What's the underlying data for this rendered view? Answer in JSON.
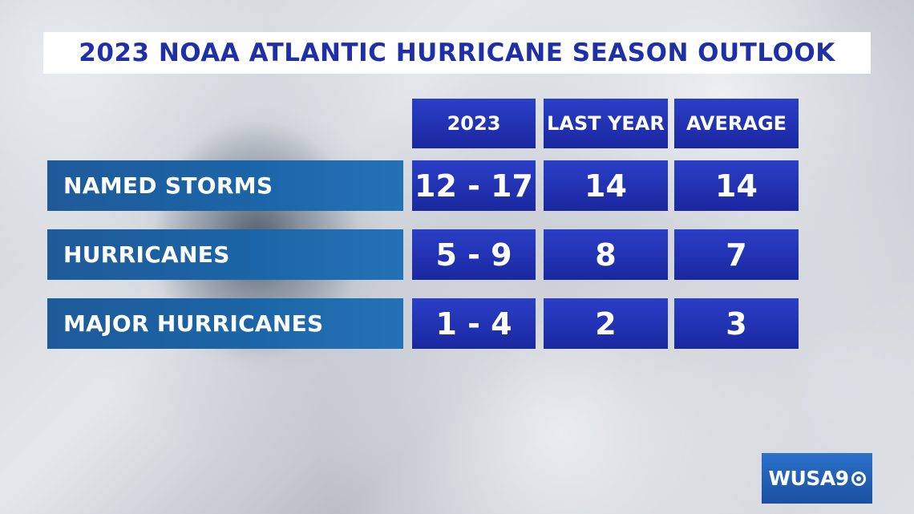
{
  "chart_data": {
    "type": "table",
    "title": "2023 NOAA ATLANTIC HURRICANE SEASON OUTLOOK",
    "columns": [
      "2023",
      "LAST YEAR",
      "AVERAGE"
    ],
    "rows": [
      {
        "label": "NAMED STORMS",
        "values": [
          "12 - 17",
          "14",
          "14"
        ]
      },
      {
        "label": "HURRICANES",
        "values": [
          "5 - 9",
          "8",
          "7"
        ]
      },
      {
        "label": "MAJOR HURRICANES",
        "values": [
          "1 - 4",
          "2",
          "3"
        ]
      }
    ]
  },
  "branding": {
    "logo_text": "WUSA9",
    "colors": {
      "title": "#1f2fa8",
      "cell": "#1a27a0",
      "row_label": "#1b66a8",
      "logo": "#1a4fa0"
    }
  }
}
